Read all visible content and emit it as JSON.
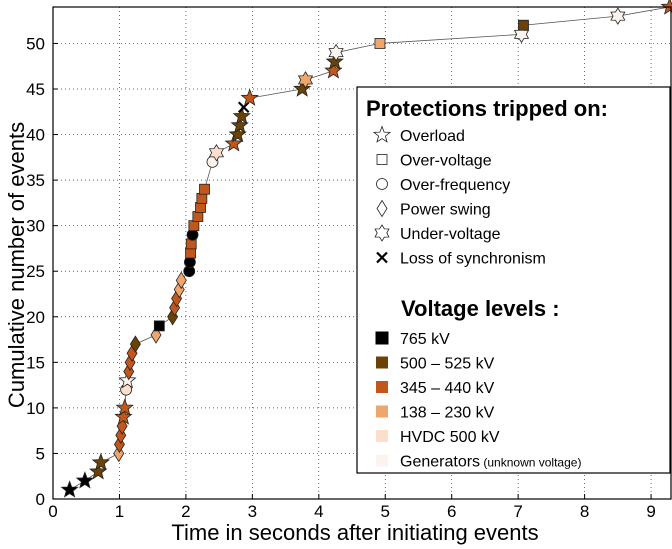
{
  "chart_data": {
    "type": "scatter",
    "xlabel": "Time in seconds after initiating events",
    "ylabel": "Cumulative number of events",
    "xlim": [
      0,
      9.3
    ],
    "ylim": [
      0,
      54
    ],
    "xticks": [
      "0",
      "1",
      "2",
      "3",
      "4",
      "5",
      "6",
      "7",
      "8",
      "9"
    ],
    "yticks": [
      "0",
      "5",
      "10",
      "15",
      "20",
      "25",
      "30",
      "35",
      "40",
      "45",
      "50"
    ],
    "grid": true,
    "grid_style": "dotted",
    "legend_position": "right",
    "legend": {
      "protection_title": "Protections tripped on:",
      "protections": [
        {
          "label": "Overload",
          "icon": "star-5-point"
        },
        {
          "label": "Over-voltage",
          "icon": "square"
        },
        {
          "label": "Over-frequency",
          "icon": "circle"
        },
        {
          "label": "Power swing",
          "icon": "diamond"
        },
        {
          "label": "Under-voltage",
          "icon": "star-6-point"
        },
        {
          "label": "Loss of synchronism",
          "icon": "x-cross"
        }
      ],
      "voltage_title": "Voltage levels :",
      "voltages": [
        {
          "label": "765 kV",
          "note": "",
          "color": "#000000"
        },
        {
          "label": "500 – 525 kV",
          "note": "",
          "color": "#6b4206"
        },
        {
          "label": "345 – 440 kV",
          "note": "",
          "color": "#c2571b"
        },
        {
          "label": "138 – 230 kV",
          "note": "",
          "color": "#eea66c"
        },
        {
          "label": "HVDC 500 kV",
          "note": "",
          "color": "#fbdfcd"
        },
        {
          "label": "Generators",
          "note": "(unknown voltage)",
          "color": "#fdf3ee"
        }
      ]
    },
    "colors": {
      "765": "#000000",
      "500": "#6b4206",
      "345": "#c2571b",
      "138": "#eea66c",
      "hvdc": "#fbdfcd",
      "gen": "#fdf3ee"
    },
    "events": [
      {
        "x": 0.25,
        "y": 1,
        "shape": "star5",
        "level": "765"
      },
      {
        "x": 0.48,
        "y": 2,
        "shape": "star5",
        "level": "765"
      },
      {
        "x": 0.68,
        "y": 3,
        "shape": "star5",
        "level": "500"
      },
      {
        "x": 0.72,
        "y": 4,
        "shape": "star5",
        "level": "500"
      },
      {
        "x": 0.99,
        "y": 5,
        "shape": "diamond",
        "level": "138"
      },
      {
        "x": 1.0,
        "y": 6,
        "shape": "diamond",
        "level": "345"
      },
      {
        "x": 1.02,
        "y": 7,
        "shape": "diamond",
        "level": "345"
      },
      {
        "x": 1.04,
        "y": 8,
        "shape": "diamond",
        "level": "345"
      },
      {
        "x": 1.06,
        "y": 9,
        "shape": "star5",
        "level": "345"
      },
      {
        "x": 1.08,
        "y": 10,
        "shape": "star5",
        "level": "345"
      },
      {
        "x": 1.1,
        "y": 12,
        "shape": "circle",
        "level": "hvdc"
      },
      {
        "x": 1.12,
        "y": 13,
        "shape": "star5",
        "level": "gen"
      },
      {
        "x": 1.14,
        "y": 14,
        "shape": "diamond",
        "level": "345"
      },
      {
        "x": 1.16,
        "y": 15,
        "shape": "diamond",
        "level": "345"
      },
      {
        "x": 1.19,
        "y": 16,
        "shape": "diamond",
        "level": "345"
      },
      {
        "x": 1.24,
        "y": 17,
        "shape": "diamond",
        "level": "500"
      },
      {
        "x": 1.55,
        "y": 18,
        "shape": "diamond",
        "level": "138"
      },
      {
        "x": 1.6,
        "y": 19,
        "shape": "square",
        "level": "765"
      },
      {
        "x": 1.8,
        "y": 20,
        "shape": "diamond",
        "level": "500"
      },
      {
        "x": 1.83,
        "y": 21,
        "shape": "diamond",
        "level": "345"
      },
      {
        "x": 1.86,
        "y": 22,
        "shape": "diamond",
        "level": "345"
      },
      {
        "x": 1.9,
        "y": 23,
        "shape": "diamond",
        "level": "138"
      },
      {
        "x": 1.93,
        "y": 24,
        "shape": "diamond",
        "level": "138"
      },
      {
        "x": 2.05,
        "y": 25,
        "shape": "circle",
        "level": "765"
      },
      {
        "x": 2.06,
        "y": 26,
        "shape": "circle",
        "level": "765"
      },
      {
        "x": 2.07,
        "y": 27,
        "shape": "square",
        "level": "345"
      },
      {
        "x": 2.08,
        "y": 28,
        "shape": "square",
        "level": "345"
      },
      {
        "x": 2.1,
        "y": 29,
        "shape": "circle",
        "level": "765"
      },
      {
        "x": 2.12,
        "y": 30,
        "shape": "square",
        "level": "345"
      },
      {
        "x": 2.18,
        "y": 31,
        "shape": "square",
        "level": "345"
      },
      {
        "x": 2.22,
        "y": 32,
        "shape": "square",
        "level": "345"
      },
      {
        "x": 2.24,
        "y": 33,
        "shape": "square",
        "level": "345"
      },
      {
        "x": 2.28,
        "y": 34,
        "shape": "square",
        "level": "345"
      },
      {
        "x": 2.4,
        "y": 37,
        "shape": "circle",
        "level": "gen"
      },
      {
        "x": 2.46,
        "y": 38,
        "shape": "star6",
        "level": "hvdc"
      },
      {
        "x": 2.72,
        "y": 39,
        "shape": "star5",
        "level": "345"
      },
      {
        "x": 2.78,
        "y": 40,
        "shape": "star5",
        "level": "500"
      },
      {
        "x": 2.81,
        "y": 41,
        "shape": "star5",
        "level": "500"
      },
      {
        "x": 2.84,
        "y": 42,
        "shape": "star5",
        "level": "500"
      },
      {
        "x": 2.87,
        "y": 43,
        "shape": "x",
        "level": "765"
      },
      {
        "x": 2.96,
        "y": 44,
        "shape": "star5",
        "level": "345"
      },
      {
        "x": 3.75,
        "y": 45,
        "shape": "star5",
        "level": "500"
      },
      {
        "x": 3.8,
        "y": 46,
        "shape": "star6",
        "level": "138"
      },
      {
        "x": 4.22,
        "y": 47,
        "shape": "star5",
        "level": "345"
      },
      {
        "x": 4.24,
        "y": 48,
        "shape": "star5",
        "level": "500"
      },
      {
        "x": 4.26,
        "y": 49,
        "shape": "star6",
        "level": "gen"
      },
      {
        "x": 4.92,
        "y": 50,
        "shape": "square",
        "level": "138"
      },
      {
        "x": 7.05,
        "y": 51,
        "shape": "star6",
        "level": "gen"
      },
      {
        "x": 7.08,
        "y": 52,
        "shape": "square",
        "level": "500"
      },
      {
        "x": 8.5,
        "y": 53,
        "shape": "star6",
        "level": "gen"
      },
      {
        "x": 9.28,
        "y": 54,
        "shape": "star5",
        "level": "345"
      }
    ]
  }
}
